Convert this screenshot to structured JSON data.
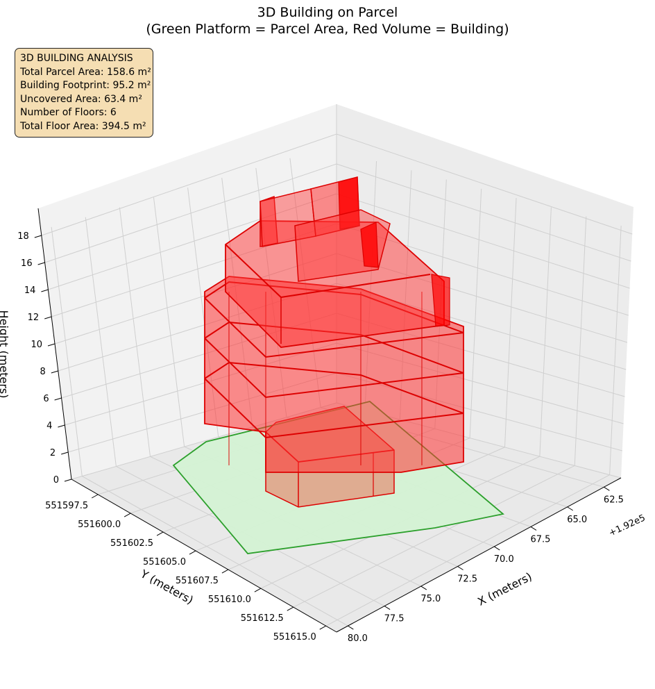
{
  "chart_data": {
    "type": "3d-polygons",
    "title": "3D Building on Parcel",
    "subtitle": "(Green Platform = Parcel Area, Red Volume = Building)",
    "xlabel": "X (meters)",
    "ylabel": "Y (meters)",
    "zlabel": "Height (meters)",
    "x_offset_label": "+1.92e5",
    "x_ticks": [
      "62.5",
      "65.0",
      "67.5",
      "70.0",
      "72.5",
      "75.0",
      "77.5",
      "80.0"
    ],
    "y_ticks": [
      "551597.5",
      "551600.0",
      "551602.5",
      "551605.0",
      "551607.5",
      "551610.0",
      "551612.5",
      "551615.0"
    ],
    "z_ticks": [
      "0",
      "2",
      "4",
      "6",
      "8",
      "10",
      "12",
      "14",
      "16",
      "18"
    ],
    "grid": true,
    "parcel": {
      "color": "#2ca02c",
      "fill": "#d4f2d4"
    },
    "building": {
      "color": "#dd0000",
      "fill": "#ff3333",
      "floors": 6
    },
    "info_box": {
      "title": "3D BUILDING ANALYSIS",
      "lines": [
        "Total Parcel Area: 158.6 m²",
        "Building Footprint: 95.2 m²",
        "Uncovered Area: 63.4 m²",
        "Number of Floors: 6",
        "Total Floor Area: 394.5 m²"
      ]
    }
  }
}
